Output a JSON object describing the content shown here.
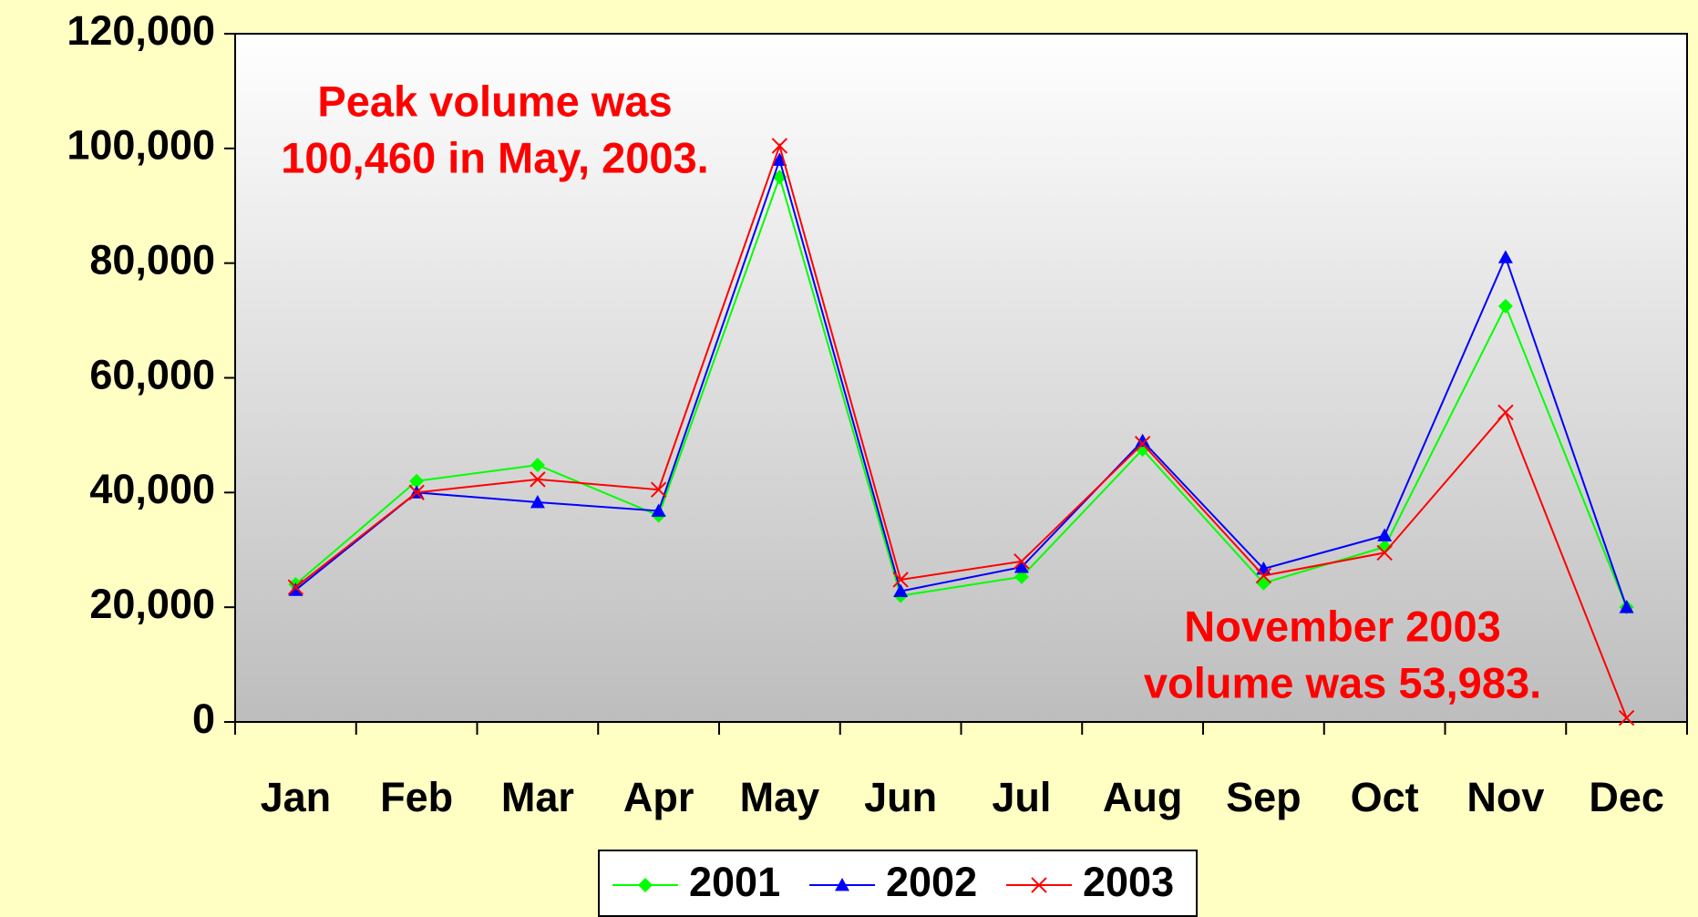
{
  "chart_data": {
    "type": "line",
    "categories": [
      "Jan",
      "Feb",
      "Mar",
      "Apr",
      "May",
      "Jun",
      "Jul",
      "Aug",
      "Sep",
      "Oct",
      "Nov",
      "Dec"
    ],
    "series": [
      {
        "name": "2001",
        "color": "#00ff00",
        "marker": "diamond",
        "values": [
          24000,
          42000,
          44800,
          36000,
          95000,
          22000,
          25300,
          47500,
          24200,
          30500,
          72500,
          20000
        ]
      },
      {
        "name": "2002",
        "color": "#0000ff",
        "marker": "triangle",
        "values": [
          23000,
          40000,
          38300,
          36800,
          98000,
          22800,
          27000,
          49000,
          26700,
          32500,
          81000,
          20000
        ]
      },
      {
        "name": "2003",
        "color": "#ff0000",
        "marker": "x",
        "values": [
          23500,
          40000,
          42300,
          40500,
          100460,
          24800,
          28000,
          48500,
          25500,
          29500,
          53983,
          700
        ]
      }
    ],
    "ylim": [
      0,
      120000
    ],
    "yticks": [
      0,
      {
        "value": 20000,
        "label": "20,000"
      },
      {
        "value": 40000,
        "label": "40,000"
      },
      {
        "value": 60000,
        "label": "60,000"
      },
      {
        "value": 80000,
        "label": "80,000"
      },
      {
        "value": 100000,
        "label": "100,000"
      },
      {
        "value": 120000,
        "label": "120,000"
      }
    ],
    "annotations": [
      {
        "lines": [
          "Peak volume was",
          "100,460 in May, 2003."
        ],
        "color": "#ff0000"
      },
      {
        "lines": [
          "November 2003",
          "volume was 53,983."
        ],
        "color": "#ff0000"
      }
    ],
    "legend": "bottom"
  }
}
